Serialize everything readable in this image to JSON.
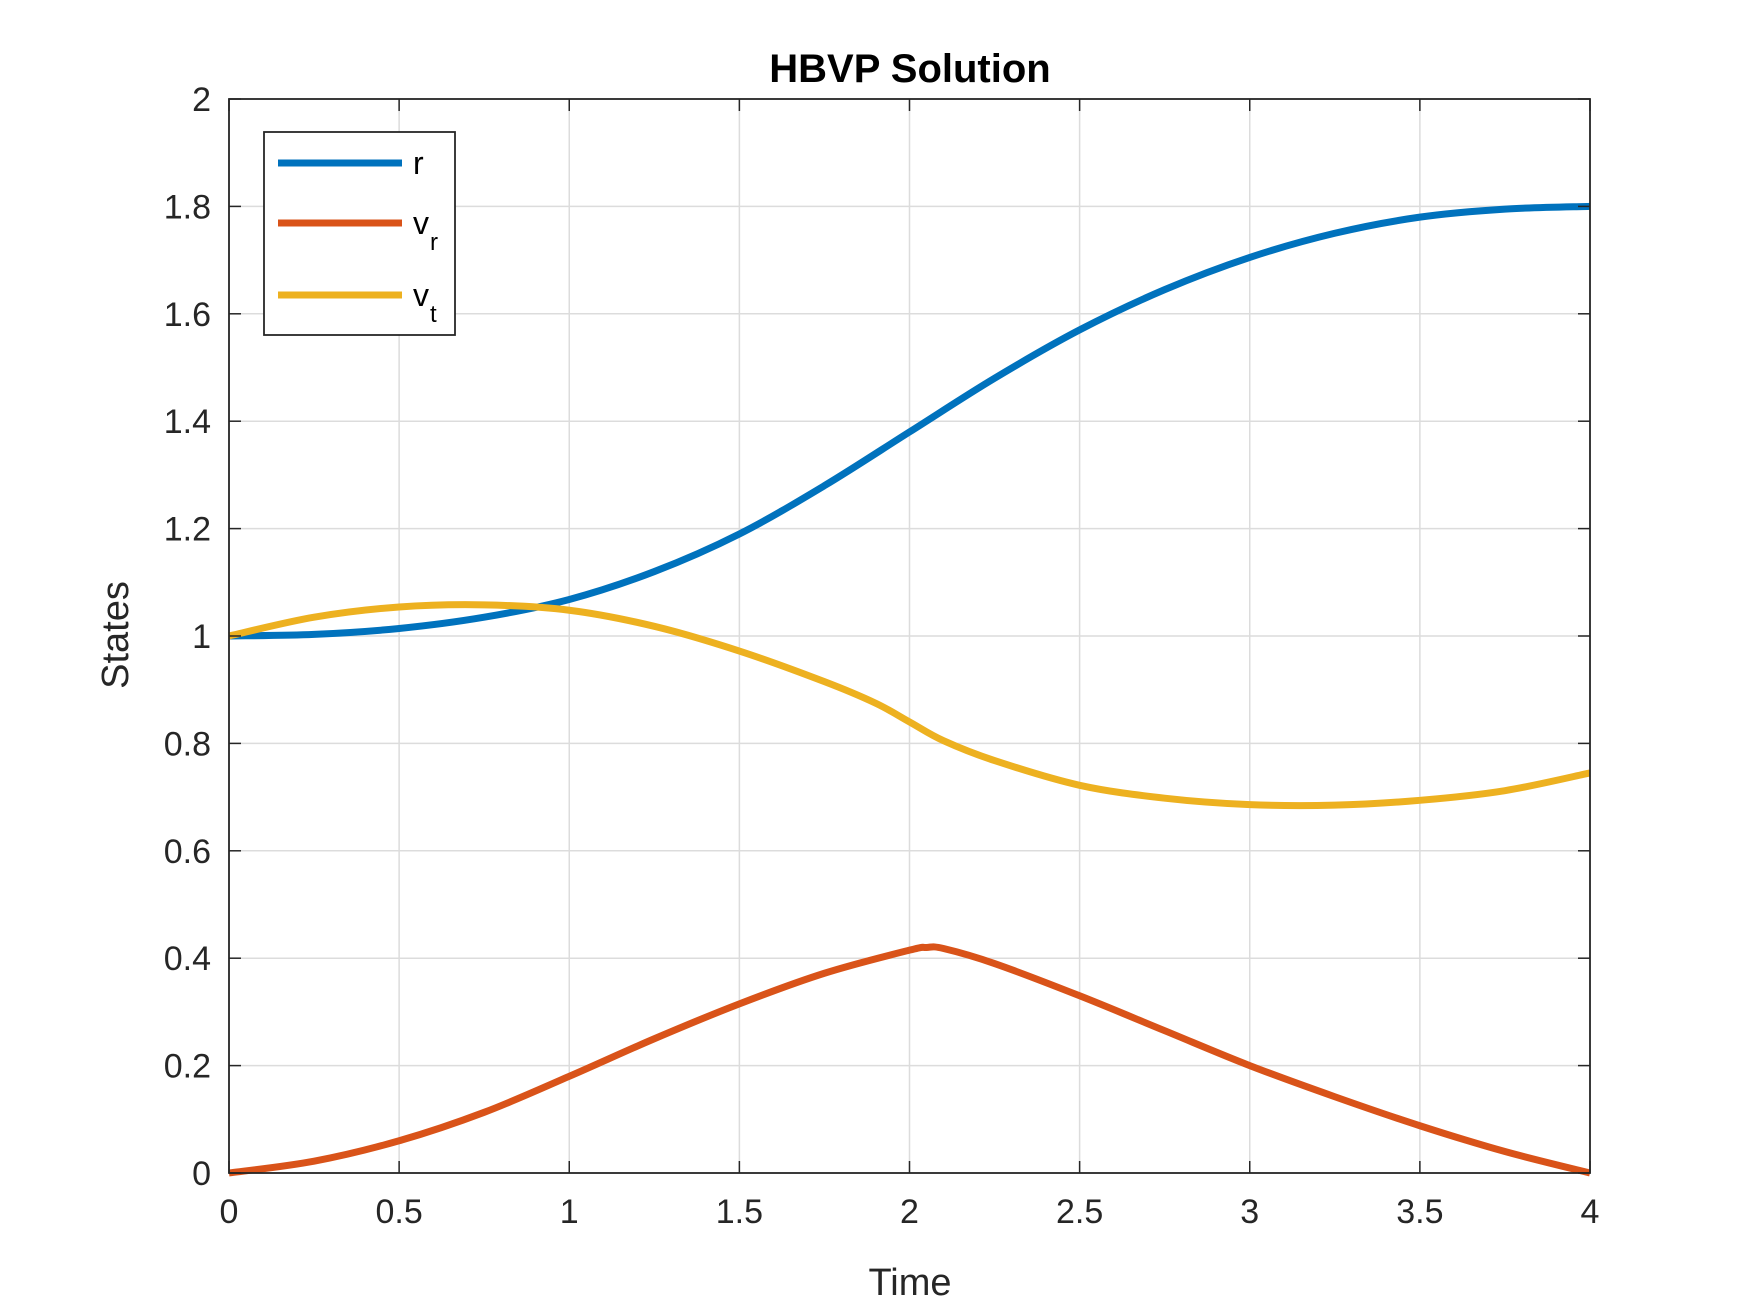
{
  "chart_data": {
    "type": "line",
    "title": "HBVP Solution",
    "xlabel": "Time",
    "ylabel": "States",
    "xlim": [
      0,
      4
    ],
    "ylim": [
      0,
      2
    ],
    "xticks": [
      "0",
      "0.5",
      "1",
      "1.5",
      "2",
      "2.5",
      "3",
      "3.5",
      "4"
    ],
    "yticks": [
      "0",
      "0.2",
      "0.4",
      "0.6",
      "0.8",
      "1",
      "1.2",
      "1.4",
      "1.6",
      "1.8",
      "2"
    ],
    "grid": true,
    "legend_position": "top-left",
    "series": [
      {
        "name": "r",
        "label_main": "r",
        "label_sub": "",
        "color": "#0072BD",
        "x": [
          0,
          0.25,
          0.5,
          0.75,
          1.0,
          1.25,
          1.5,
          1.75,
          2.0,
          2.25,
          2.5,
          2.75,
          3.0,
          3.25,
          3.5,
          3.75,
          4.0
        ],
        "y": [
          1.0,
          1.003,
          1.014,
          1.035,
          1.068,
          1.12,
          1.19,
          1.28,
          1.38,
          1.48,
          1.57,
          1.645,
          1.705,
          1.75,
          1.78,
          1.795,
          1.8
        ]
      },
      {
        "name": "v_r",
        "label_main": "v",
        "label_sub": "r",
        "color": "#D95319",
        "x": [
          0,
          0.25,
          0.5,
          0.75,
          1.0,
          1.25,
          1.5,
          1.75,
          2.0,
          2.05,
          2.1,
          2.25,
          2.5,
          2.75,
          3.0,
          3.25,
          3.5,
          3.75,
          4.0
        ],
        "y": [
          0.0,
          0.022,
          0.06,
          0.113,
          0.18,
          0.25,
          0.315,
          0.372,
          0.415,
          0.42,
          0.418,
          0.39,
          0.33,
          0.265,
          0.2,
          0.142,
          0.088,
          0.04,
          0.0
        ]
      },
      {
        "name": "v_t",
        "label_main": "v",
        "label_sub": "t",
        "color": "#EDB120",
        "x": [
          0,
          0.25,
          0.5,
          0.75,
          1.0,
          1.25,
          1.5,
          1.75,
          1.9,
          2.0,
          2.1,
          2.25,
          2.5,
          2.75,
          3.0,
          3.25,
          3.5,
          3.75,
          4.0
        ],
        "y": [
          1.0,
          1.035,
          1.054,
          1.058,
          1.048,
          1.018,
          0.972,
          0.915,
          0.875,
          0.84,
          0.805,
          0.768,
          0.722,
          0.698,
          0.686,
          0.685,
          0.694,
          0.712,
          0.745
        ]
      }
    ]
  }
}
